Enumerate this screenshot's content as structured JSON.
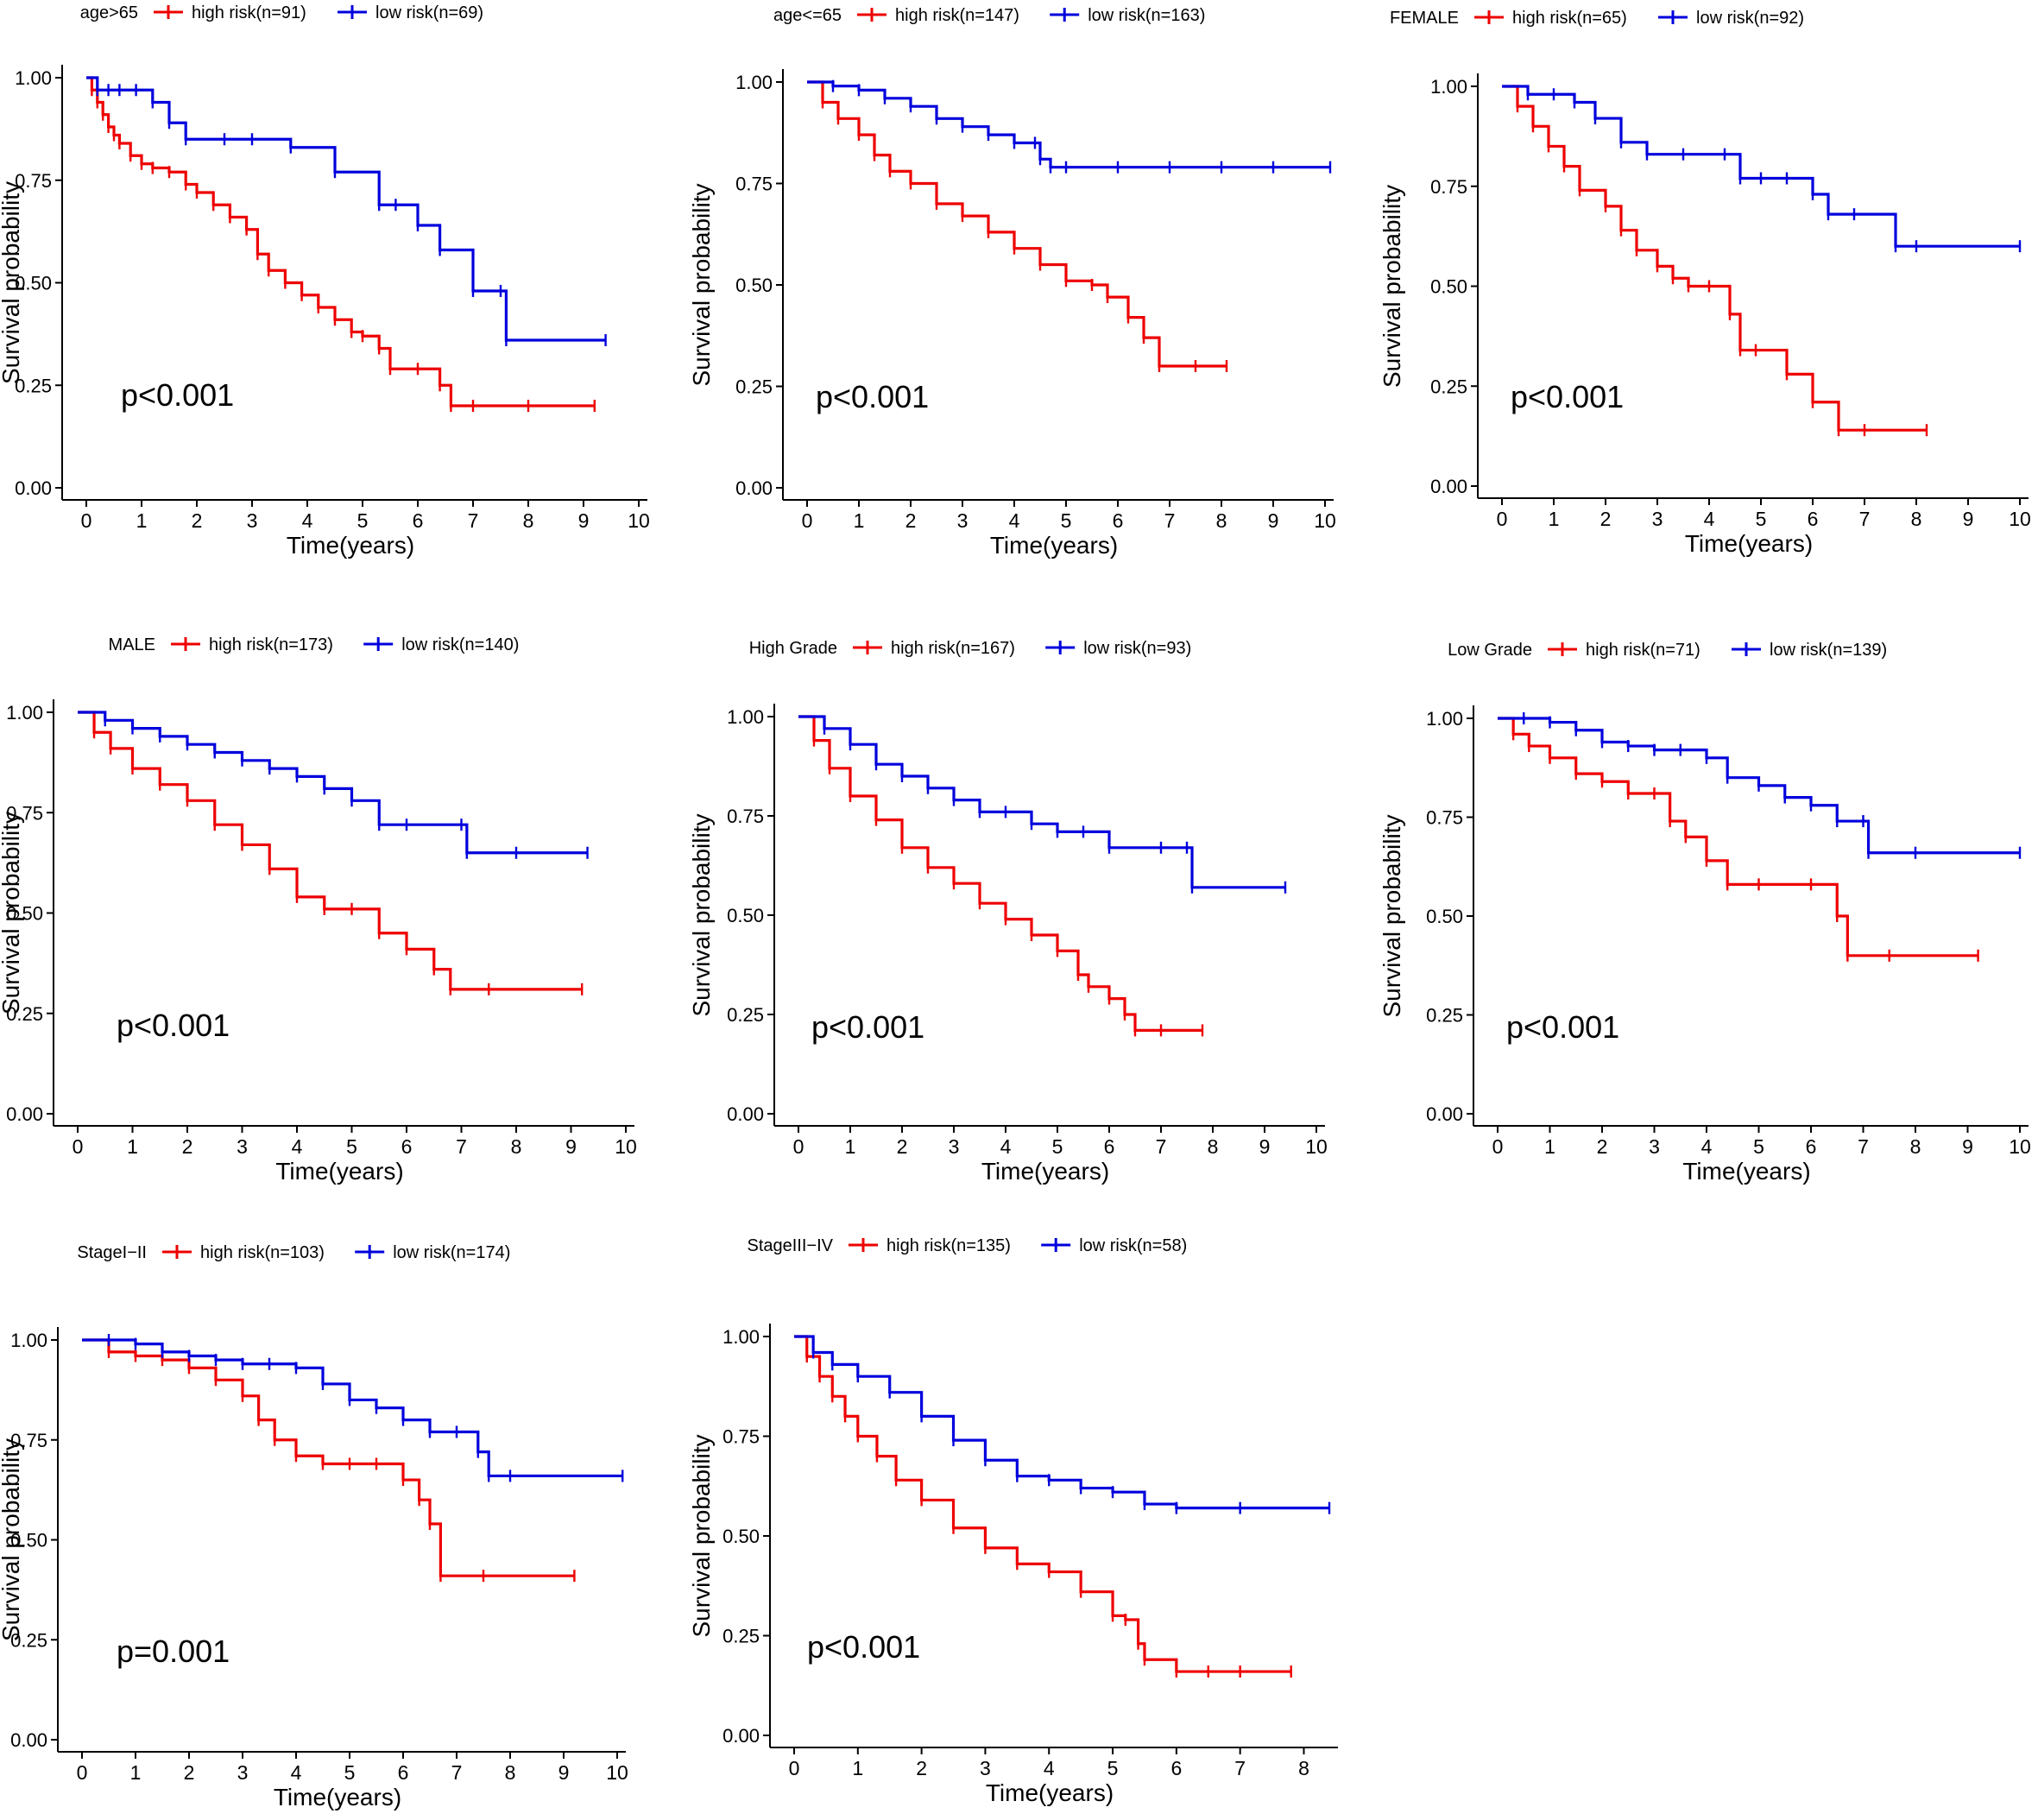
{
  "colors": {
    "high": "#ee0000",
    "low": "#0000dd",
    "axis": "#000000"
  },
  "axis_labels": {
    "x": "Time(years)",
    "y": "Survival probability"
  },
  "chart_data": [
    {
      "type": "line",
      "title": "age>65",
      "legend": {
        "group": "age>65",
        "high": "high risk(n=91)",
        "low": "low risk(n=69)"
      },
      "pvalue": "p<0.001",
      "xlim": [
        0,
        10
      ],
      "ylim": [
        0,
        1
      ],
      "xticks": [
        0,
        1,
        2,
        3,
        4,
        5,
        6,
        7,
        8,
        9,
        10
      ],
      "yticks": [
        "0.00",
        "0.25",
        "0.50",
        "0.75",
        "1.00"
      ],
      "xlabel": "Time(years)",
      "ylabel": "Survival probability",
      "series": [
        {
          "name": "high risk",
          "x": [
            0,
            0.1,
            0.2,
            0.3,
            0.4,
            0.5,
            0.6,
            0.8,
            1.0,
            1.2,
            1.5,
            1.8,
            2.0,
            2.3,
            2.6,
            2.9,
            3.1,
            3.3,
            3.6,
            3.9,
            4.2,
            4.5,
            4.8,
            5.0,
            5.3,
            5.5,
            6.0,
            6.4,
            6.6,
            7.0,
            8.0,
            9.2
          ],
          "y": [
            1,
            0.97,
            0.94,
            0.91,
            0.88,
            0.86,
            0.84,
            0.81,
            0.79,
            0.78,
            0.77,
            0.74,
            0.72,
            0.69,
            0.66,
            0.63,
            0.57,
            0.53,
            0.5,
            0.47,
            0.44,
            0.41,
            0.38,
            0.37,
            0.34,
            0.29,
            0.29,
            0.25,
            0.2,
            0.2,
            0.2,
            0.2
          ]
        },
        {
          "name": "low risk",
          "x": [
            0,
            0.2,
            0.4,
            0.6,
            0.9,
            1.2,
            1.5,
            1.8,
            2.5,
            3.0,
            3.7,
            4.5,
            5.3,
            5.6,
            6.0,
            6.4,
            7.0,
            7.5,
            7.6,
            9.4
          ],
          "y": [
            1,
            0.97,
            0.97,
            0.97,
            0.97,
            0.94,
            0.89,
            0.85,
            0.85,
            0.85,
            0.83,
            0.77,
            0.69,
            0.69,
            0.64,
            0.58,
            0.48,
            0.48,
            0.36,
            0.36
          ]
        }
      ]
    },
    {
      "type": "line",
      "title": "age<=65",
      "legend": {
        "group": "age<=65",
        "high": "high risk(n=147)",
        "low": "low risk(n=163)"
      },
      "pvalue": "p<0.001",
      "xlim": [
        0,
        10
      ],
      "ylim": [
        0,
        1
      ],
      "xticks": [
        0,
        1,
        2,
        3,
        4,
        5,
        6,
        7,
        8,
        9,
        10
      ],
      "yticks": [
        "0.00",
        "0.25",
        "0.50",
        "0.75",
        "1.00"
      ],
      "xlabel": "Time(years)",
      "ylabel": "Survival probability",
      "series": [
        {
          "name": "high risk",
          "x": [
            0,
            0.3,
            0.6,
            1.0,
            1.3,
            1.6,
            2.0,
            2.5,
            3.0,
            3.5,
            4.0,
            4.5,
            5.0,
            5.5,
            5.8,
            6.2,
            6.5,
            6.8,
            7.5,
            8.1
          ],
          "y": [
            1,
            0.95,
            0.91,
            0.87,
            0.82,
            0.78,
            0.75,
            0.7,
            0.67,
            0.63,
            0.59,
            0.55,
            0.51,
            0.5,
            0.47,
            0.42,
            0.37,
            0.3,
            0.3,
            0.3
          ]
        },
        {
          "name": "low risk",
          "x": [
            0,
            0.5,
            1.0,
            1.5,
            2.0,
            2.5,
            3.0,
            3.5,
            4.0,
            4.4,
            4.5,
            4.7,
            5.0,
            6.0,
            7.0,
            8.0,
            9.0,
            10.1
          ],
          "y": [
            1,
            0.99,
            0.98,
            0.96,
            0.94,
            0.91,
            0.89,
            0.87,
            0.85,
            0.85,
            0.81,
            0.79,
            0.79,
            0.79,
            0.79,
            0.79,
            0.79,
            0.79
          ]
        }
      ]
    },
    {
      "type": "line",
      "title": "FEMALE",
      "legend": {
        "group": "FEMALE",
        "high": "high risk(n=65)",
        "low": "low risk(n=92)"
      },
      "pvalue": "p<0.001",
      "xlim": [
        0,
        10
      ],
      "ylim": [
        0,
        1
      ],
      "xticks": [
        0,
        1,
        2,
        3,
        4,
        5,
        6,
        7,
        8,
        9,
        10
      ],
      "yticks": [
        "0.00",
        "0.25",
        "0.50",
        "0.75",
        "1.00"
      ],
      "xlabel": "Time(years)",
      "ylabel": "Survival probability",
      "series": [
        {
          "name": "high risk",
          "x": [
            0,
            0.3,
            0.6,
            0.9,
            1.2,
            1.5,
            2.0,
            2.3,
            2.6,
            3.0,
            3.3,
            3.6,
            4.0,
            4.4,
            4.6,
            4.9,
            5.5,
            6.0,
            6.5,
            7.0,
            8.2
          ],
          "y": [
            1,
            0.95,
            0.9,
            0.85,
            0.8,
            0.74,
            0.7,
            0.64,
            0.59,
            0.55,
            0.52,
            0.5,
            0.5,
            0.43,
            0.34,
            0.34,
            0.28,
            0.21,
            0.14,
            0.14,
            0.14
          ]
        },
        {
          "name": "low risk",
          "x": [
            0,
            0.5,
            1.0,
            1.4,
            1.8,
            2.3,
            2.8,
            3.5,
            4.3,
            4.6,
            5.0,
            5.5,
            6.0,
            6.3,
            6.8,
            7.6,
            8.0,
            10.0
          ],
          "y": [
            1,
            0.98,
            0.98,
            0.96,
            0.92,
            0.86,
            0.83,
            0.83,
            0.83,
            0.77,
            0.77,
            0.77,
            0.73,
            0.68,
            0.68,
            0.6,
            0.6,
            0.6
          ]
        }
      ]
    },
    {
      "type": "line",
      "title": "MALE",
      "legend": {
        "group": "MALE",
        "high": "high risk(n=173)",
        "low": "low risk(n=140)"
      },
      "pvalue": "p<0.001",
      "xlim": [
        0,
        10
      ],
      "ylim": [
        0,
        1
      ],
      "xticks": [
        0,
        1,
        2,
        3,
        4,
        5,
        6,
        7,
        8,
        9,
        10
      ],
      "yticks": [
        "0.00",
        "0.25",
        "0.50",
        "0.75",
        "1.00"
      ],
      "xlabel": "Time(years)",
      "ylabel": "Survival probability",
      "series": [
        {
          "name": "high risk",
          "x": [
            0,
            0.3,
            0.6,
            1.0,
            1.5,
            2.0,
            2.5,
            3.0,
            3.5,
            4.0,
            4.5,
            5.0,
            5.5,
            6.0,
            6.5,
            6.8,
            7.5,
            9.2
          ],
          "y": [
            1,
            0.95,
            0.91,
            0.86,
            0.82,
            0.78,
            0.72,
            0.67,
            0.61,
            0.54,
            0.51,
            0.51,
            0.45,
            0.41,
            0.36,
            0.31,
            0.31,
            0.31
          ]
        },
        {
          "name": "low risk",
          "x": [
            0,
            0.5,
            1.0,
            1.5,
            2.0,
            2.5,
            3.0,
            3.5,
            4.0,
            4.5,
            5.0,
            5.5,
            6.0,
            7.0,
            7.1,
            8.0,
            9.3
          ],
          "y": [
            1,
            0.98,
            0.96,
            0.94,
            0.92,
            0.9,
            0.88,
            0.86,
            0.84,
            0.81,
            0.78,
            0.72,
            0.72,
            0.72,
            0.65,
            0.65,
            0.65
          ]
        }
      ]
    },
    {
      "type": "line",
      "title": "High Grade",
      "legend": {
        "group": "High Grade",
        "high": "high risk(n=167)",
        "low": "low risk(n=93)"
      },
      "pvalue": "p<0.001",
      "xlim": [
        0,
        10
      ],
      "ylim": [
        0,
        1
      ],
      "xticks": [
        0,
        1,
        2,
        3,
        4,
        5,
        6,
        7,
        8,
        9,
        10
      ],
      "yticks": [
        "0.00",
        "0.25",
        "0.50",
        "0.75",
        "1.00"
      ],
      "xlabel": "Time(years)",
      "ylabel": "Survival probability",
      "series": [
        {
          "name": "high risk",
          "x": [
            0,
            0.3,
            0.6,
            1.0,
            1.5,
            2.0,
            2.5,
            3.0,
            3.5,
            4.0,
            4.5,
            5.0,
            5.4,
            5.6,
            6.0,
            6.3,
            6.5,
            7.0,
            7.8
          ],
          "y": [
            1,
            0.94,
            0.87,
            0.8,
            0.74,
            0.67,
            0.62,
            0.58,
            0.53,
            0.49,
            0.45,
            0.41,
            0.35,
            0.32,
            0.29,
            0.25,
            0.21,
            0.21,
            0.21
          ]
        },
        {
          "name": "low risk",
          "x": [
            0,
            0.5,
            1.0,
            1.5,
            2.0,
            2.5,
            3.0,
            3.5,
            4.0,
            4.5,
            5.0,
            5.5,
            6.0,
            7.0,
            7.5,
            7.6,
            9.4
          ],
          "y": [
            1,
            0.97,
            0.93,
            0.88,
            0.85,
            0.82,
            0.79,
            0.76,
            0.76,
            0.73,
            0.71,
            0.71,
            0.67,
            0.67,
            0.67,
            0.57,
            0.57
          ]
        }
      ]
    },
    {
      "type": "line",
      "title": "Low Grade",
      "legend": {
        "group": "Low Grade",
        "high": "high risk(n=71)",
        "low": "low risk(n=139)"
      },
      "pvalue": "p<0.001",
      "xlim": [
        0,
        10
      ],
      "ylim": [
        0,
        1
      ],
      "xticks": [
        0,
        1,
        2,
        3,
        4,
        5,
        6,
        7,
        8,
        9,
        10
      ],
      "yticks": [
        "0.00",
        "0.25",
        "0.50",
        "0.75",
        "1.00"
      ],
      "xlabel": "Time(years)",
      "ylabel": "Survival probability",
      "series": [
        {
          "name": "high risk",
          "x": [
            0,
            0.3,
            0.6,
            1.0,
            1.5,
            2.0,
            2.5,
            3.0,
            3.3,
            3.6,
            4.0,
            4.4,
            5.0,
            6.0,
            6.5,
            6.7,
            7.5,
            9.2
          ],
          "y": [
            1,
            0.96,
            0.93,
            0.9,
            0.86,
            0.84,
            0.81,
            0.81,
            0.74,
            0.7,
            0.64,
            0.58,
            0.58,
            0.58,
            0.5,
            0.4,
            0.4,
            0.4
          ]
        },
        {
          "name": "low risk",
          "x": [
            0,
            0.5,
            1.0,
            1.5,
            2.0,
            2.5,
            3.0,
            3.5,
            4.0,
            4.4,
            5.0,
            5.5,
            6.0,
            6.5,
            7.0,
            7.1,
            8.0,
            10.0
          ],
          "y": [
            1,
            1,
            0.99,
            0.97,
            0.94,
            0.93,
            0.92,
            0.92,
            0.9,
            0.85,
            0.83,
            0.8,
            0.78,
            0.74,
            0.74,
            0.66,
            0.66,
            0.66
          ]
        }
      ]
    },
    {
      "type": "line",
      "title": "StageI-II",
      "legend": {
        "group": "StageI−II",
        "high": "high risk(n=103)",
        "low": "low risk(n=174)"
      },
      "pvalue": "p=0.001",
      "xlim": [
        0,
        10
      ],
      "ylim": [
        0,
        1
      ],
      "xticks": [
        0,
        1,
        2,
        3,
        4,
        5,
        6,
        7,
        8,
        9,
        10
      ],
      "yticks": [
        "0.00",
        "0.25",
        "0.50",
        "0.75",
        "1.00"
      ],
      "xlabel": "Time(years)",
      "ylabel": "Survival probability",
      "series": [
        {
          "name": "high risk",
          "x": [
            0,
            0.5,
            1.0,
            1.5,
            2.0,
            2.5,
            3.0,
            3.3,
            3.6,
            4.0,
            4.5,
            5.0,
            5.5,
            6.0,
            6.3,
            6.5,
            6.7,
            7.5,
            9.2
          ],
          "y": [
            1,
            0.97,
            0.96,
            0.95,
            0.93,
            0.9,
            0.86,
            0.8,
            0.75,
            0.71,
            0.69,
            0.69,
            0.69,
            0.65,
            0.6,
            0.54,
            0.41,
            0.41,
            0.41
          ]
        },
        {
          "name": "low risk",
          "x": [
            0,
            0.5,
            1.0,
            1.5,
            2.0,
            2.5,
            3.0,
            3.5,
            4.0,
            4.5,
            5.0,
            5.5,
            6.0,
            6.5,
            7.0,
            7.4,
            7.6,
            8.0,
            10.1
          ],
          "y": [
            1,
            1,
            0.99,
            0.97,
            0.96,
            0.95,
            0.94,
            0.94,
            0.93,
            0.89,
            0.85,
            0.83,
            0.8,
            0.77,
            0.77,
            0.72,
            0.66,
            0.66,
            0.66
          ]
        }
      ]
    },
    {
      "type": "line",
      "title": "StageIII-IV",
      "legend": {
        "group": "StageIII−IV",
        "high": "high risk(n=135)",
        "low": "low risk(n=58)"
      },
      "pvalue": "p<0.001",
      "xlim": [
        0,
        8.4
      ],
      "ylim": [
        0,
        1
      ],
      "xticks": [
        0,
        1,
        2,
        3,
        4,
        5,
        6,
        7,
        8
      ],
      "yticks": [
        "0.00",
        "0.25",
        "0.50",
        "0.75",
        "1.00"
      ],
      "xlabel": "Time(years)",
      "ylabel": "Survival probability",
      "series": [
        {
          "name": "high risk",
          "x": [
            0,
            0.2,
            0.4,
            0.6,
            0.8,
            1.0,
            1.3,
            1.6,
            2.0,
            2.5,
            3.0,
            3.5,
            4.0,
            4.5,
            5.0,
            5.2,
            5.4,
            5.5,
            6.0,
            6.5,
            7.0,
            7.8
          ],
          "y": [
            1,
            0.95,
            0.9,
            0.85,
            0.8,
            0.75,
            0.7,
            0.64,
            0.59,
            0.52,
            0.47,
            0.43,
            0.41,
            0.36,
            0.3,
            0.29,
            0.23,
            0.19,
            0.16,
            0.16,
            0.16,
            0.16
          ]
        },
        {
          "name": "low risk",
          "x": [
            0,
            0.3,
            0.6,
            1.0,
            1.5,
            2.0,
            2.5,
            3.0,
            3.5,
            4.0,
            4.5,
            5.0,
            5.5,
            6.0,
            7.0,
            8.4
          ],
          "y": [
            1,
            0.96,
            0.93,
            0.9,
            0.86,
            0.8,
            0.74,
            0.69,
            0.65,
            0.64,
            0.62,
            0.61,
            0.58,
            0.57,
            0.57,
            0.57
          ]
        }
      ]
    }
  ]
}
